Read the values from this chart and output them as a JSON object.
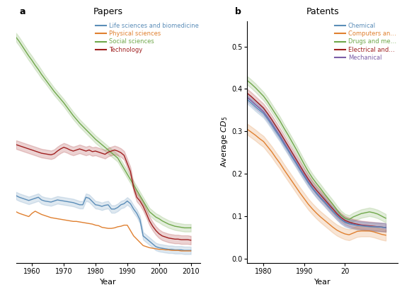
{
  "papers": {
    "years": [
      1955,
      1956,
      1957,
      1958,
      1959,
      1960,
      1961,
      1962,
      1963,
      1964,
      1965,
      1966,
      1967,
      1968,
      1969,
      1970,
      1971,
      1972,
      1973,
      1974,
      1975,
      1976,
      1977,
      1978,
      1979,
      1980,
      1981,
      1982,
      1983,
      1984,
      1985,
      1986,
      1987,
      1988,
      1989,
      1990,
      1991,
      1992,
      1993,
      1994,
      1995,
      1996,
      1997,
      1998,
      1999,
      2000,
      2001,
      2002,
      2003,
      2004,
      2005,
      2006,
      2007,
      2008,
      2009,
      2010
    ],
    "social": [
      0.41,
      0.402,
      0.393,
      0.384,
      0.375,
      0.367,
      0.358,
      0.35,
      0.341,
      0.333,
      0.325,
      0.317,
      0.309,
      0.302,
      0.295,
      0.288,
      0.28,
      0.272,
      0.264,
      0.257,
      0.25,
      0.244,
      0.238,
      0.232,
      0.226,
      0.22,
      0.215,
      0.21,
      0.205,
      0.2,
      0.195,
      0.19,
      0.185,
      0.175,
      0.165,
      0.155,
      0.145,
      0.135,
      0.125,
      0.115,
      0.105,
      0.095,
      0.085,
      0.08,
      0.075,
      0.072,
      0.068,
      0.065,
      0.062,
      0.06,
      0.058,
      0.057,
      0.056,
      0.055,
      0.055,
      0.055
    ],
    "social_lo": [
      0.402,
      0.394,
      0.385,
      0.376,
      0.367,
      0.359,
      0.35,
      0.342,
      0.333,
      0.326,
      0.318,
      0.31,
      0.302,
      0.295,
      0.288,
      0.281,
      0.273,
      0.265,
      0.257,
      0.25,
      0.243,
      0.237,
      0.231,
      0.225,
      0.219,
      0.213,
      0.208,
      0.203,
      0.198,
      0.193,
      0.188,
      0.183,
      0.178,
      0.168,
      0.158,
      0.148,
      0.138,
      0.128,
      0.118,
      0.108,
      0.098,
      0.088,
      0.078,
      0.073,
      0.068,
      0.065,
      0.061,
      0.058,
      0.055,
      0.053,
      0.051,
      0.05,
      0.049,
      0.048,
      0.048,
      0.048
    ],
    "social_hi": [
      0.418,
      0.41,
      0.401,
      0.392,
      0.383,
      0.375,
      0.366,
      0.358,
      0.349,
      0.34,
      0.332,
      0.324,
      0.316,
      0.309,
      0.302,
      0.295,
      0.287,
      0.279,
      0.271,
      0.264,
      0.257,
      0.251,
      0.245,
      0.239,
      0.233,
      0.227,
      0.222,
      0.217,
      0.212,
      0.207,
      0.202,
      0.197,
      0.192,
      0.182,
      0.172,
      0.162,
      0.152,
      0.142,
      0.132,
      0.122,
      0.112,
      0.102,
      0.092,
      0.087,
      0.082,
      0.079,
      0.075,
      0.072,
      0.069,
      0.067,
      0.065,
      0.064,
      0.063,
      0.062,
      0.062,
      0.062
    ],
    "technology": [
      0.21,
      0.208,
      0.206,
      0.204,
      0.202,
      0.2,
      0.198,
      0.196,
      0.194,
      0.193,
      0.192,
      0.191,
      0.193,
      0.198,
      0.202,
      0.205,
      0.203,
      0.2,
      0.198,
      0.2,
      0.202,
      0.2,
      0.198,
      0.2,
      0.197,
      0.198,
      0.196,
      0.194,
      0.192,
      0.196,
      0.198,
      0.2,
      0.198,
      0.195,
      0.19,
      0.175,
      0.16,
      0.13,
      0.112,
      0.105,
      0.095,
      0.082,
      0.068,
      0.058,
      0.05,
      0.044,
      0.04,
      0.038,
      0.036,
      0.035,
      0.034,
      0.034,
      0.033,
      0.033,
      0.033,
      0.032
    ],
    "technology_lo": [
      0.202,
      0.2,
      0.198,
      0.196,
      0.194,
      0.192,
      0.19,
      0.188,
      0.186,
      0.185,
      0.184,
      0.183,
      0.185,
      0.19,
      0.194,
      0.197,
      0.195,
      0.192,
      0.19,
      0.192,
      0.194,
      0.192,
      0.19,
      0.192,
      0.189,
      0.19,
      0.188,
      0.186,
      0.184,
      0.188,
      0.19,
      0.192,
      0.19,
      0.187,
      0.182,
      0.167,
      0.152,
      0.122,
      0.104,
      0.097,
      0.087,
      0.074,
      0.06,
      0.05,
      0.042,
      0.036,
      0.032,
      0.03,
      0.028,
      0.027,
      0.026,
      0.026,
      0.025,
      0.025,
      0.025,
      0.024
    ],
    "technology_hi": [
      0.218,
      0.216,
      0.214,
      0.212,
      0.21,
      0.208,
      0.206,
      0.204,
      0.202,
      0.201,
      0.2,
      0.199,
      0.201,
      0.206,
      0.21,
      0.213,
      0.211,
      0.208,
      0.206,
      0.208,
      0.21,
      0.208,
      0.206,
      0.208,
      0.205,
      0.206,
      0.204,
      0.202,
      0.2,
      0.204,
      0.206,
      0.208,
      0.206,
      0.203,
      0.198,
      0.183,
      0.168,
      0.138,
      0.12,
      0.113,
      0.103,
      0.09,
      0.076,
      0.066,
      0.058,
      0.052,
      0.048,
      0.046,
      0.044,
      0.043,
      0.042,
      0.042,
      0.041,
      0.041,
      0.041,
      0.04
    ],
    "life": [
      0.115,
      0.112,
      0.11,
      0.108,
      0.106,
      0.108,
      0.11,
      0.112,
      0.107,
      0.105,
      0.104,
      0.103,
      0.105,
      0.107,
      0.106,
      0.105,
      0.104,
      0.103,
      0.102,
      0.1,
      0.098,
      0.098,
      0.112,
      0.11,
      0.104,
      0.098,
      0.097,
      0.095,
      0.097,
      0.098,
      0.09,
      0.09,
      0.093,
      0.098,
      0.1,
      0.105,
      0.1,
      0.09,
      0.082,
      0.07,
      0.04,
      0.035,
      0.03,
      0.025,
      0.02,
      0.018,
      0.017,
      0.016,
      0.015,
      0.015,
      0.014,
      0.014,
      0.014,
      0.013,
      0.013,
      0.013
    ],
    "life_lo": [
      0.108,
      0.105,
      0.103,
      0.101,
      0.099,
      0.101,
      0.103,
      0.105,
      0.1,
      0.098,
      0.097,
      0.096,
      0.098,
      0.1,
      0.099,
      0.098,
      0.097,
      0.096,
      0.095,
      0.093,
      0.091,
      0.091,
      0.105,
      0.103,
      0.097,
      0.091,
      0.09,
      0.088,
      0.09,
      0.091,
      0.083,
      0.083,
      0.086,
      0.091,
      0.093,
      0.098,
      0.093,
      0.083,
      0.075,
      0.063,
      0.033,
      0.028,
      0.023,
      0.018,
      0.013,
      0.011,
      0.01,
      0.009,
      0.008,
      0.008,
      0.007,
      0.007,
      0.007,
      0.006,
      0.006,
      0.006
    ],
    "life_hi": [
      0.122,
      0.119,
      0.117,
      0.115,
      0.113,
      0.115,
      0.117,
      0.119,
      0.114,
      0.112,
      0.111,
      0.11,
      0.112,
      0.114,
      0.113,
      0.112,
      0.111,
      0.11,
      0.109,
      0.107,
      0.105,
      0.105,
      0.119,
      0.117,
      0.111,
      0.105,
      0.104,
      0.102,
      0.104,
      0.105,
      0.097,
      0.097,
      0.1,
      0.105,
      0.107,
      0.112,
      0.107,
      0.097,
      0.089,
      0.077,
      0.047,
      0.042,
      0.037,
      0.032,
      0.027,
      0.025,
      0.024,
      0.023,
      0.022,
      0.022,
      0.021,
      0.021,
      0.021,
      0.02,
      0.02,
      0.02
    ],
    "physical": [
      0.085,
      0.082,
      0.08,
      0.078,
      0.076,
      0.082,
      0.086,
      0.083,
      0.08,
      0.078,
      0.076,
      0.074,
      0.073,
      0.072,
      0.071,
      0.07,
      0.069,
      0.068,
      0.067,
      0.067,
      0.066,
      0.065,
      0.064,
      0.063,
      0.062,
      0.06,
      0.059,
      0.056,
      0.055,
      0.054,
      0.054,
      0.055,
      0.057,
      0.058,
      0.06,
      0.06,
      0.05,
      0.04,
      0.034,
      0.028,
      0.022,
      0.02,
      0.018,
      0.017,
      0.016,
      0.015,
      0.015,
      0.014,
      0.014,
      0.013,
      0.013,
      0.013,
      0.012,
      0.012,
      0.012,
      0.012
    ],
    "physical_lo": [
      0.078,
      0.075,
      0.073,
      0.071,
      0.069,
      0.075,
      0.079,
      0.076,
      0.073,
      0.071,
      0.069,
      0.067,
      0.066,
      0.065,
      0.064,
      0.063,
      0.062,
      0.061,
      0.06,
      0.06,
      0.059,
      0.058,
      0.057,
      0.056,
      0.055,
      0.053,
      0.052,
      0.049,
      0.048,
      0.047,
      0.047,
      0.048,
      0.05,
      0.051,
      0.053,
      0.053,
      0.043,
      0.033,
      0.027,
      0.021,
      0.015,
      0.013,
      0.011,
      0.01,
      0.009,
      0.008,
      0.008,
      0.007,
      0.007,
      0.006,
      0.006,
      0.006,
      0.005,
      0.005,
      0.005,
      0.005
    ],
    "physical_hi": [
      0.092,
      0.089,
      0.087,
      0.085,
      0.083,
      0.089,
      0.093,
      0.09,
      0.087,
      0.085,
      0.083,
      0.081,
      0.08,
      0.079,
      0.078,
      0.077,
      0.076,
      0.075,
      0.074,
      0.074,
      0.073,
      0.072,
      0.071,
      0.07,
      0.069,
      0.067,
      0.066,
      0.063,
      0.062,
      0.061,
      0.061,
      0.062,
      0.064,
      0.065,
      0.067,
      0.067,
      0.057,
      0.047,
      0.041,
      0.035,
      0.029,
      0.027,
      0.025,
      0.024,
      0.023,
      0.022,
      0.022,
      0.021,
      0.021,
      0.02,
      0.02,
      0.02,
      0.019,
      0.019,
      0.019,
      0.019
    ]
  },
  "patents": {
    "years": [
      1976,
      1977,
      1978,
      1979,
      1980,
      1981,
      1982,
      1983,
      1984,
      1985,
      1986,
      1987,
      1988,
      1989,
      1990,
      1991,
      1992,
      1993,
      1994,
      1995,
      1996,
      1997,
      1998,
      1999,
      2000,
      2001,
      2002,
      2003,
      2004,
      2005,
      2006,
      2007,
      2008,
      2009,
      2010
    ],
    "drugs": [
      0.42,
      0.412,
      0.403,
      0.393,
      0.383,
      0.37,
      0.355,
      0.34,
      0.325,
      0.308,
      0.292,
      0.275,
      0.258,
      0.24,
      0.222,
      0.205,
      0.19,
      0.177,
      0.165,
      0.152,
      0.14,
      0.128,
      0.115,
      0.103,
      0.095,
      0.092,
      0.098,
      0.102,
      0.106,
      0.108,
      0.11,
      0.108,
      0.105,
      0.1,
      0.095
    ],
    "drugs_lo": [
      0.41,
      0.402,
      0.393,
      0.383,
      0.373,
      0.36,
      0.345,
      0.33,
      0.315,
      0.298,
      0.282,
      0.265,
      0.248,
      0.23,
      0.212,
      0.195,
      0.18,
      0.167,
      0.155,
      0.142,
      0.13,
      0.118,
      0.105,
      0.093,
      0.085,
      0.082,
      0.088,
      0.092,
      0.096,
      0.098,
      0.1,
      0.098,
      0.095,
      0.09,
      0.085
    ],
    "drugs_hi": [
      0.43,
      0.422,
      0.413,
      0.403,
      0.393,
      0.38,
      0.365,
      0.35,
      0.335,
      0.318,
      0.302,
      0.285,
      0.268,
      0.25,
      0.232,
      0.215,
      0.2,
      0.187,
      0.175,
      0.162,
      0.15,
      0.138,
      0.125,
      0.113,
      0.105,
      0.102,
      0.108,
      0.112,
      0.116,
      0.118,
      0.12,
      0.118,
      0.115,
      0.11,
      0.105
    ],
    "electrical": [
      0.39,
      0.382,
      0.373,
      0.364,
      0.355,
      0.342,
      0.328,
      0.313,
      0.298,
      0.282,
      0.266,
      0.25,
      0.234,
      0.218,
      0.202,
      0.187,
      0.173,
      0.161,
      0.15,
      0.139,
      0.128,
      0.117,
      0.106,
      0.097,
      0.09,
      0.086,
      0.083,
      0.081,
      0.079,
      0.078,
      0.077,
      0.076,
      0.075,
      0.074,
      0.073
    ],
    "electrical_lo": [
      0.38,
      0.372,
      0.363,
      0.354,
      0.345,
      0.332,
      0.318,
      0.303,
      0.288,
      0.272,
      0.256,
      0.24,
      0.224,
      0.208,
      0.192,
      0.177,
      0.163,
      0.151,
      0.14,
      0.129,
      0.118,
      0.107,
      0.096,
      0.087,
      0.08,
      0.076,
      0.073,
      0.071,
      0.069,
      0.068,
      0.067,
      0.066,
      0.065,
      0.064,
      0.063
    ],
    "electrical_hi": [
      0.4,
      0.392,
      0.383,
      0.374,
      0.365,
      0.352,
      0.338,
      0.323,
      0.308,
      0.292,
      0.276,
      0.26,
      0.244,
      0.228,
      0.212,
      0.197,
      0.183,
      0.171,
      0.16,
      0.149,
      0.138,
      0.127,
      0.116,
      0.107,
      0.1,
      0.096,
      0.093,
      0.091,
      0.089,
      0.088,
      0.087,
      0.086,
      0.085,
      0.084,
      0.083
    ],
    "chemical": [
      0.375,
      0.367,
      0.358,
      0.35,
      0.342,
      0.329,
      0.315,
      0.3,
      0.286,
      0.27,
      0.255,
      0.239,
      0.224,
      0.208,
      0.193,
      0.178,
      0.165,
      0.153,
      0.142,
      0.132,
      0.121,
      0.111,
      0.101,
      0.092,
      0.085,
      0.082,
      0.08,
      0.078,
      0.077,
      0.076,
      0.075,
      0.075,
      0.074,
      0.074,
      0.073
    ],
    "chemical_lo": [
      0.365,
      0.357,
      0.348,
      0.34,
      0.332,
      0.319,
      0.305,
      0.29,
      0.276,
      0.26,
      0.245,
      0.229,
      0.214,
      0.198,
      0.183,
      0.168,
      0.155,
      0.143,
      0.132,
      0.122,
      0.111,
      0.101,
      0.091,
      0.082,
      0.075,
      0.072,
      0.07,
      0.068,
      0.067,
      0.066,
      0.065,
      0.065,
      0.064,
      0.064,
      0.063
    ],
    "chemical_hi": [
      0.385,
      0.377,
      0.368,
      0.36,
      0.352,
      0.339,
      0.325,
      0.31,
      0.296,
      0.28,
      0.265,
      0.249,
      0.234,
      0.218,
      0.203,
      0.188,
      0.175,
      0.163,
      0.152,
      0.142,
      0.131,
      0.121,
      0.111,
      0.102,
      0.095,
      0.092,
      0.09,
      0.088,
      0.087,
      0.086,
      0.085,
      0.085,
      0.084,
      0.084,
      0.083
    ],
    "mechanical": [
      0.38,
      0.372,
      0.363,
      0.355,
      0.346,
      0.333,
      0.319,
      0.304,
      0.29,
      0.274,
      0.258,
      0.242,
      0.227,
      0.211,
      0.196,
      0.181,
      0.167,
      0.155,
      0.144,
      0.134,
      0.123,
      0.112,
      0.102,
      0.093,
      0.087,
      0.083,
      0.081,
      0.079,
      0.078,
      0.077,
      0.076,
      0.075,
      0.075,
      0.074,
      0.073
    ],
    "mechanical_lo": [
      0.37,
      0.362,
      0.353,
      0.345,
      0.336,
      0.323,
      0.309,
      0.294,
      0.28,
      0.264,
      0.248,
      0.232,
      0.217,
      0.201,
      0.186,
      0.171,
      0.157,
      0.145,
      0.134,
      0.124,
      0.113,
      0.102,
      0.092,
      0.083,
      0.077,
      0.073,
      0.071,
      0.069,
      0.068,
      0.067,
      0.066,
      0.065,
      0.065,
      0.064,
      0.063
    ],
    "mechanical_hi": [
      0.39,
      0.382,
      0.373,
      0.365,
      0.356,
      0.343,
      0.329,
      0.314,
      0.3,
      0.284,
      0.268,
      0.252,
      0.237,
      0.221,
      0.206,
      0.191,
      0.177,
      0.165,
      0.154,
      0.144,
      0.133,
      0.122,
      0.112,
      0.103,
      0.097,
      0.093,
      0.091,
      0.089,
      0.088,
      0.087,
      0.086,
      0.085,
      0.085,
      0.084,
      0.083
    ],
    "computers": [
      0.305,
      0.298,
      0.291,
      0.283,
      0.276,
      0.264,
      0.252,
      0.238,
      0.225,
      0.21,
      0.196,
      0.182,
      0.168,
      0.154,
      0.141,
      0.128,
      0.117,
      0.107,
      0.098,
      0.09,
      0.082,
      0.074,
      0.067,
      0.062,
      0.058,
      0.056,
      0.06,
      0.064,
      0.065,
      0.065,
      0.065,
      0.063,
      0.06,
      0.057,
      0.055
    ],
    "computers_lo": [
      0.292,
      0.285,
      0.278,
      0.27,
      0.263,
      0.251,
      0.239,
      0.225,
      0.212,
      0.197,
      0.183,
      0.169,
      0.155,
      0.141,
      0.128,
      0.115,
      0.104,
      0.094,
      0.085,
      0.077,
      0.069,
      0.061,
      0.054,
      0.049,
      0.045,
      0.043,
      0.047,
      0.051,
      0.052,
      0.052,
      0.052,
      0.05,
      0.047,
      0.044,
      0.042
    ],
    "computers_hi": [
      0.318,
      0.311,
      0.304,
      0.296,
      0.289,
      0.277,
      0.265,
      0.251,
      0.238,
      0.223,
      0.209,
      0.195,
      0.181,
      0.167,
      0.154,
      0.141,
      0.13,
      0.12,
      0.111,
      0.103,
      0.095,
      0.087,
      0.08,
      0.075,
      0.071,
      0.069,
      0.073,
      0.077,
      0.078,
      0.078,
      0.078,
      0.076,
      0.073,
      0.07,
      0.068
    ]
  },
  "colors": {
    "life_sciences": "#5B8DB8",
    "physical_sciences": "#E08030",
    "social_sciences": "#70A84B",
    "technology": "#A02020",
    "chemical": "#5B8DB8",
    "computers": "#E08030",
    "drugs": "#70A84B",
    "electrical": "#A02020",
    "mechanical": "#7B5EA7"
  }
}
